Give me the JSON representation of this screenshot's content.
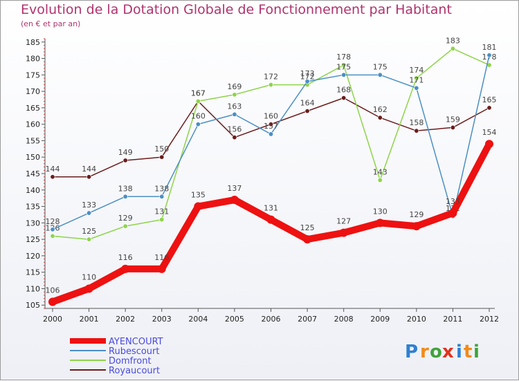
{
  "header": {
    "title": "Evolution de la Dotation Globale de Fonctionnement par Habitant",
    "subtitle": "(en € et par an)"
  },
  "brand": {
    "text": "Proxiti",
    "letters": [
      "P",
      "r",
      "o",
      "x",
      "i",
      "t",
      "i"
    ],
    "colors": [
      "#2f7fd1",
      "#f08a1c",
      "#3fa33b",
      "#e0321d",
      "#2f7fd1",
      "#f08a1c",
      "#3fa33b"
    ]
  },
  "chart_data": {
    "type": "line",
    "title": "Evolution de la Dotation Globale de Fonctionnement par Habitant",
    "subtitle": "(en € et par an)",
    "xlabel": "",
    "ylabel": "",
    "categories": [
      "2000",
      "2001",
      "2002",
      "2003",
      "2004",
      "2005",
      "2006",
      "2007",
      "2008",
      "2009",
      "2010",
      "2011",
      "2012"
    ],
    "ylim": [
      104,
      186
    ],
    "yticks": [
      105,
      110,
      115,
      120,
      125,
      130,
      135,
      140,
      145,
      150,
      155,
      160,
      165,
      170,
      175,
      180,
      185
    ],
    "grid": false,
    "legend_position": "bottom-left",
    "series": [
      {
        "name": "Royaucourt",
        "color": "#6b1c1c",
        "values": [
          144,
          144,
          149,
          150,
          167,
          156,
          160,
          164,
          168,
          162,
          158,
          159,
          165
        ],
        "labels": [
          "144",
          "144",
          "149",
          "150",
          "167",
          "156",
          "160",
          "164",
          "168",
          "162",
          "158",
          "159",
          "165"
        ]
      },
      {
        "name": "Domfront",
        "color": "#8ed44a",
        "values": [
          126,
          125,
          129,
          131,
          167,
          169,
          172,
          172,
          178,
          143,
          174,
          183,
          178
        ],
        "labels": [
          "126",
          "125",
          "129",
          "131",
          "167",
          "169",
          "172",
          "172",
          "178",
          "143",
          "174",
          "183",
          "178"
        ]
      },
      {
        "name": "Rubescourt",
        "color": "#4a8fc4",
        "values": [
          128,
          133,
          138,
          138,
          160,
          163,
          157,
          173,
          175,
          175,
          171,
          132,
          181
        ],
        "labels": [
          "128",
          "133",
          "138",
          "138",
          "160",
          "163",
          "157",
          "173",
          "175",
          "175",
          "171",
          "132",
          "181"
        ]
      },
      {
        "name": "AYENCOURT",
        "color": "#ee1111",
        "values": [
          106,
          110,
          116,
          116,
          135,
          137,
          131,
          125,
          127,
          130,
          129,
          133,
          154
        ],
        "labels": [
          "106",
          "110",
          "116",
          "116",
          "135",
          "137",
          "131",
          "125",
          "127",
          "130",
          "129",
          "133",
          "154"
        ]
      }
    ],
    "legend": [
      {
        "name": "AYENCOURT",
        "color": "#ee1111"
      },
      {
        "name": "Rubescourt",
        "color": "#4a8fc4"
      },
      {
        "name": "Domfront",
        "color": "#8ed44a"
      },
      {
        "name": "Royaucourt",
        "color": "#6b1c1c"
      }
    ]
  }
}
